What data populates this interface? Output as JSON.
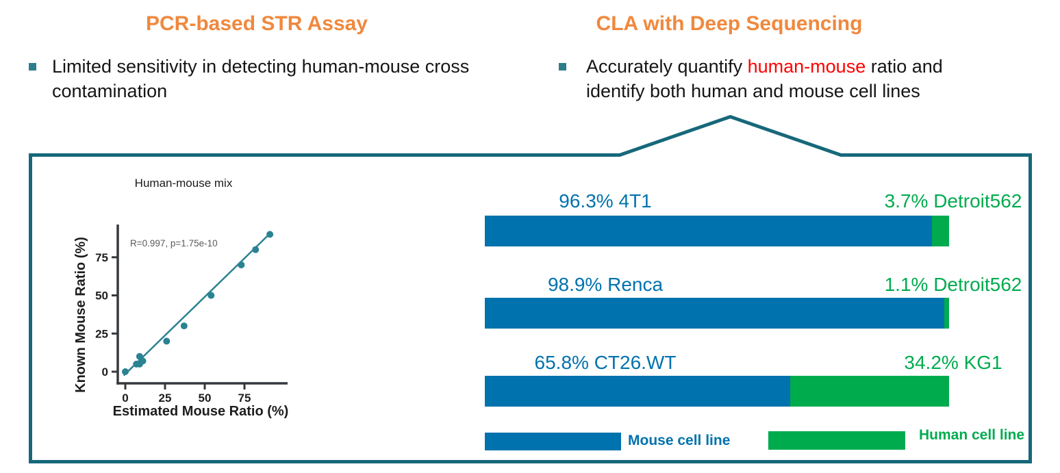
{
  "columns": {
    "left": {
      "title": "PCR-based STR Assay",
      "bullet_line1": "Limited sensitivity in detecting human-mouse cross",
      "bullet_line2": "contamination"
    },
    "right": {
      "title": "CLA with Deep Sequencing",
      "bullet_line1_pre": "Accurately quantify ",
      "bullet_line1_red": "human-mouse",
      "bullet_line1_post": " ratio and",
      "bullet_line2": "identify both human and mouse cell lines"
    }
  },
  "colors": {
    "heading_orange": "#F0883D",
    "highlight_red": "#FF0000",
    "outline_teal": "#16687A",
    "scatter_teal": "#2A8292",
    "bar_blue": "#0072AD",
    "bar_green": "#00AB4E",
    "bullet_teal": "#2E7D8C",
    "annotation_gray": "#595959"
  },
  "chart_data": [
    {
      "type": "scatter",
      "title": "Human-mouse mix",
      "xlabel": "Estimated Mouse Ratio (%)",
      "ylabel": "Known Mouse Ratio (%)",
      "annotation": "R=0.997, p=1.75e-10",
      "x_ticks": [
        0,
        25,
        50,
        75
      ],
      "y_ticks": [
        0,
        25,
        50,
        75
      ],
      "xlim": [
        0,
        95
      ],
      "ylim": [
        0,
        95
      ],
      "points": [
        [
          0,
          0
        ],
        [
          7,
          5
        ],
        [
          9,
          5
        ],
        [
          9,
          10
        ],
        [
          11,
          7
        ],
        [
          26,
          20
        ],
        [
          37,
          30
        ],
        [
          54,
          50
        ],
        [
          73,
          70
        ],
        [
          82,
          80
        ],
        [
          91,
          90
        ]
      ],
      "fit_line": {
        "x1": -1,
        "y1": -2.5,
        "x2": 92,
        "y2": 91.5
      },
      "grid": false
    },
    {
      "type": "bar",
      "orientation": "horizontal-stacked",
      "rows": [
        {
          "mouse_pct": 96.3,
          "mouse_label": "96.3% 4T1",
          "human_pct": 3.7,
          "human_label": "3.7% Detroit562"
        },
        {
          "mouse_pct": 98.9,
          "mouse_label": "98.9% Renca",
          "human_pct": 1.1,
          "human_label": "1.1% Detroit562"
        },
        {
          "mouse_pct": 65.8,
          "mouse_label": "65.8% CT26.WT",
          "human_pct": 34.2,
          "human_label": "34.2% KG1"
        }
      ],
      "legend": [
        {
          "label": "Mouse cell line",
          "color": "#0072AD"
        },
        {
          "label": "Human cell line",
          "color": "#00AB4E"
        }
      ]
    }
  ]
}
